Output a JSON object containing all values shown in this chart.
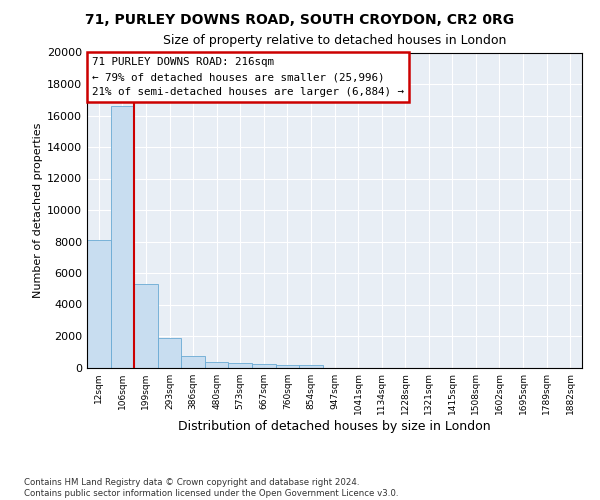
{
  "title1": "71, PURLEY DOWNS ROAD, SOUTH CROYDON, CR2 0RG",
  "title2": "Size of property relative to detached houses in London",
  "xlabel": "Distribution of detached houses by size in London",
  "ylabel": "Number of detached properties",
  "bar_color": "#c8ddf0",
  "bar_edge_color": "#6aaad4",
  "bg_color": "#e8eef5",
  "categories": [
    "12sqm",
    "106sqm",
    "199sqm",
    "293sqm",
    "386sqm",
    "480sqm",
    "573sqm",
    "667sqm",
    "760sqm",
    "854sqm",
    "947sqm",
    "1041sqm",
    "1134sqm",
    "1228sqm",
    "1321sqm",
    "1415sqm",
    "1508sqm",
    "1602sqm",
    "1695sqm",
    "1789sqm",
    "1882sqm"
  ],
  "values": [
    8100,
    16600,
    5300,
    1850,
    700,
    350,
    270,
    220,
    190,
    170,
    0,
    0,
    0,
    0,
    0,
    0,
    0,
    0,
    0,
    0,
    0
  ],
  "ylim_max": 20000,
  "yticks": [
    0,
    2000,
    4000,
    6000,
    8000,
    10000,
    12000,
    14000,
    16000,
    18000,
    20000
  ],
  "vline_pos": 1.5,
  "annot_text": "71 PURLEY DOWNS ROAD: 216sqm\n← 79% of detached houses are smaller (25,996)\n21% of semi-detached houses are larger (6,884) →",
  "annot_edge_color": "#cc0000",
  "footer": "Contains HM Land Registry data © Crown copyright and database right 2024.\nContains public sector information licensed under the Open Government Licence v3.0."
}
